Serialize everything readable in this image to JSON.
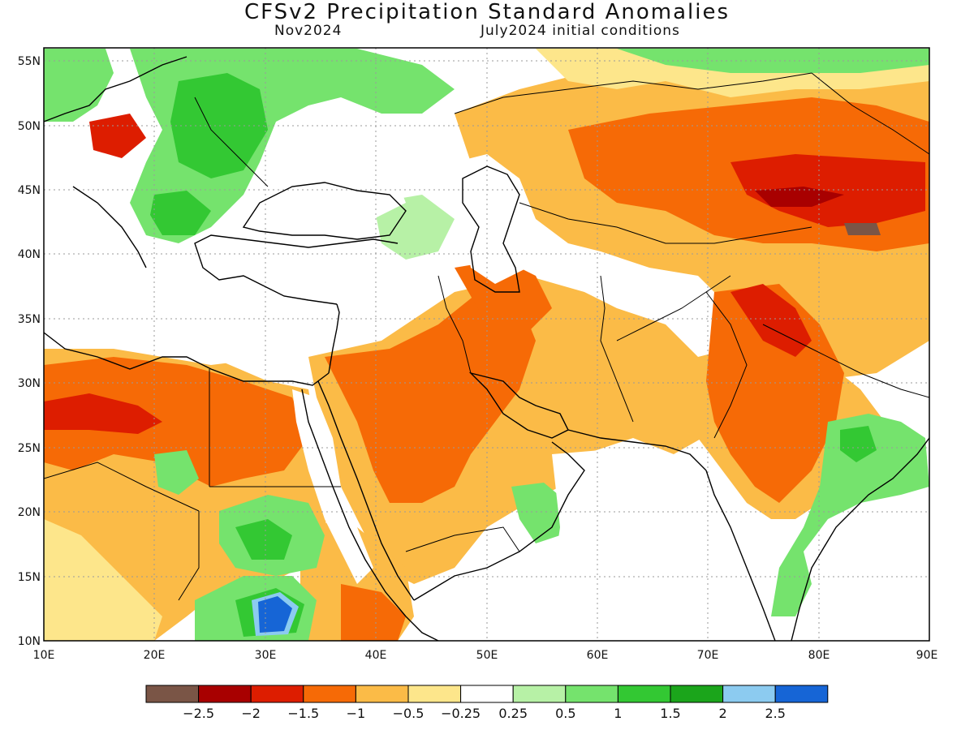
{
  "title": "CFSv2 Precipitation Standard Anomalies",
  "subtitle_left": "Nov2024",
  "subtitle_right": "July2024 initial conditions",
  "lat_ticks": [
    "55N",
    "50N",
    "45N",
    "40N",
    "35N",
    "30N",
    "25N",
    "20N",
    "15N",
    "10N"
  ],
  "lon_ticks": [
    "10E",
    "20E",
    "30E",
    "40E",
    "50E",
    "60E",
    "70E",
    "80E",
    "90E"
  ],
  "colorbar": {
    "colors": [
      "#7a5546",
      "#a80000",
      "#dd1d00",
      "#f66a06",
      "#fbbb47",
      "#fde68b",
      "#ffffff",
      "#b7f1a6",
      "#75e36d",
      "#33c833",
      "#1ba51b",
      "#8ccbf0",
      "#1665d6"
    ],
    "labels": [
      "−2.5",
      "−2",
      "−1.5",
      "−1",
      "−0.5",
      "−0.25",
      "0.25",
      "0.5",
      "1",
      "1.5",
      "2",
      "2.5"
    ]
  },
  "colors": {
    "ocean": "#ffffff",
    "coast": "#000000",
    "grid": "#9a9a9a"
  }
}
